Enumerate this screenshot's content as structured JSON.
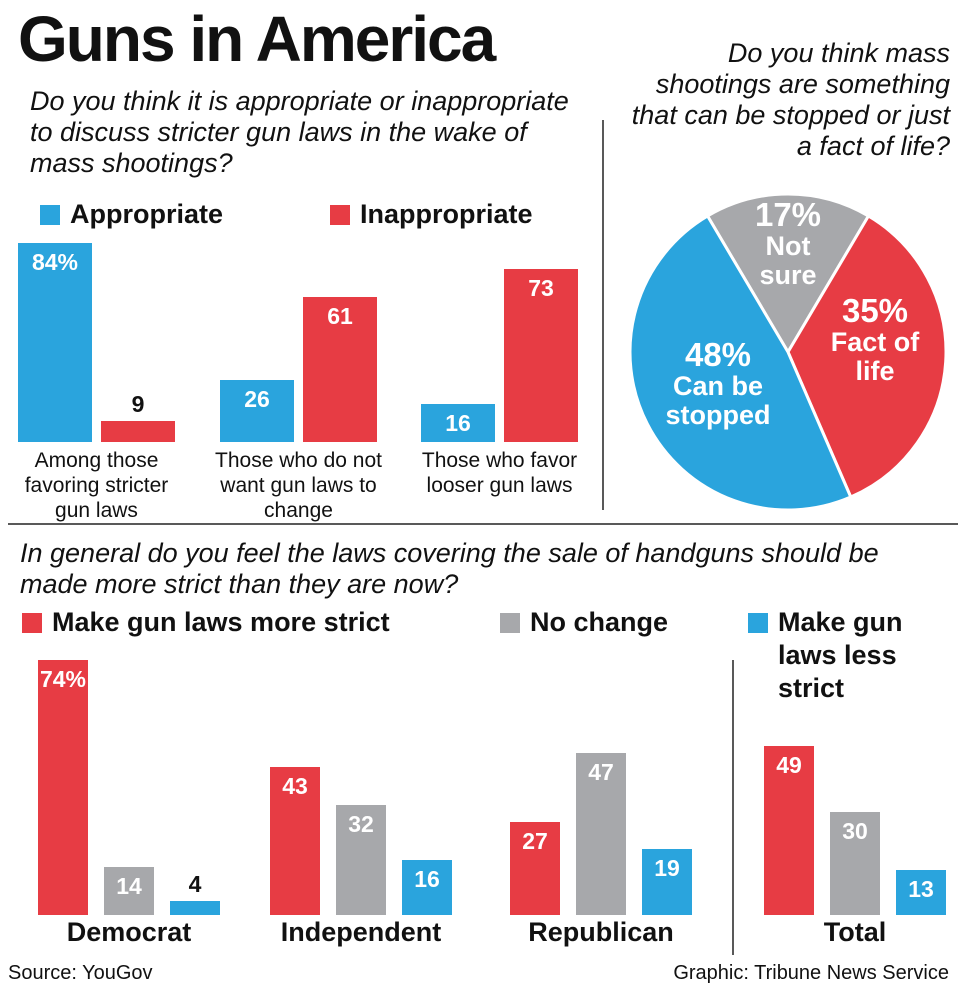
{
  "title": "Guns in America",
  "source": "Source: YouGov",
  "credit": "Graphic: Tribune News Service",
  "chart_data": [
    {
      "type": "bar",
      "title": "Do you think it is appropriate or inappropriate to discuss stricter gun laws in the wake of mass shootings?",
      "categories": [
        "Among those favoring stricter gun laws",
        "Those who do not want gun laws to change",
        "Those who favor looser gun laws"
      ],
      "series": [
        {
          "name": "Appropriate",
          "color": "#2aa4dd",
          "values": [
            84,
            26,
            16
          ],
          "value_labels": [
            "84%",
            "26",
            "16"
          ]
        },
        {
          "name": "Inappropriate",
          "color": "#e73c44",
          "values": [
            9,
            61,
            73
          ]
        }
      ]
    },
    {
      "type": "pie",
      "title": "Do you think mass shootings are something that can be stopped or just a fact of life?",
      "categories": [
        "Not sure",
        "Fact of life",
        "Can be stopped"
      ],
      "values": [
        17,
        35,
        48
      ],
      "value_labels": [
        "17%",
        "35%",
        "48%"
      ],
      "colors": [
        "#a7a8ab",
        "#e73c44",
        "#2aa4dd"
      ]
    },
    {
      "type": "bar",
      "title": "In general do you feel the laws covering the sale of handguns should be made more strict than they are now?",
      "categories": [
        "Democrat",
        "Independent",
        "Republican",
        "Total"
      ],
      "series": [
        {
          "name": "Make gun laws more strict",
          "color": "#e73c44",
          "values": [
            74,
            43,
            27,
            49
          ],
          "value_labels": [
            "74%",
            "43",
            "27",
            "49"
          ]
        },
        {
          "name": "No change",
          "color": "#a7a8ab",
          "values": [
            14,
            32,
            47,
            30
          ]
        },
        {
          "name": "Make gun laws less strict",
          "color": "#2aa4dd",
          "values": [
            4,
            16,
            19,
            13
          ]
        }
      ]
    }
  ]
}
